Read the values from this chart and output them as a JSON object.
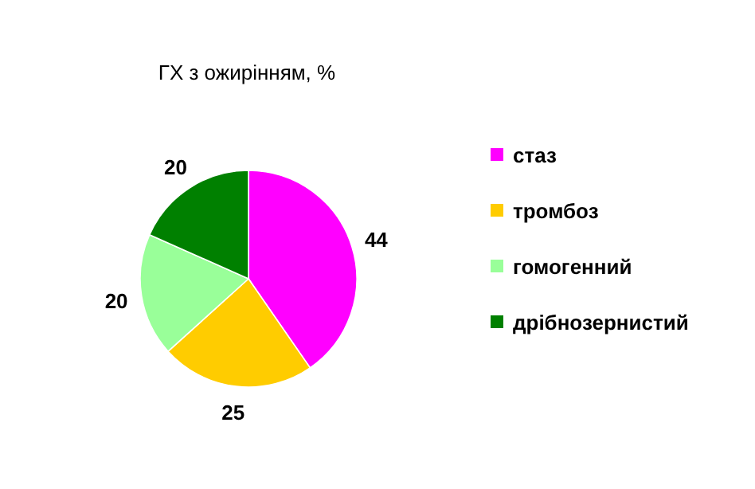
{
  "chart_data": {
    "type": "pie",
    "title": "ГХ з ожирінням, %",
    "categories": [
      "стаз",
      "тромбоз",
      "гомогенний",
      "дрібнозернистий"
    ],
    "values": [
      44,
      25,
      20,
      20
    ],
    "colors": [
      "#ff00ff",
      "#ffcc00",
      "#99ff99",
      "#008000"
    ],
    "data_labels": true,
    "legend": "right"
  }
}
